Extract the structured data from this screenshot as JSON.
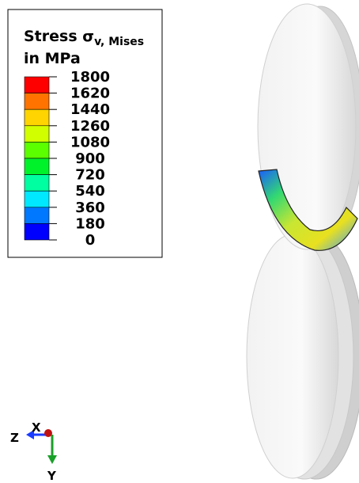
{
  "legend": {
    "title": "Stress σ",
    "title_subscript": "v, Mises",
    "unit": "in MPa",
    "labels": [
      1800,
      1620,
      1440,
      1260,
      1080,
      900,
      720,
      540,
      360,
      180,
      0
    ],
    "colors": [
      "#ff0000",
      "#ff7400",
      "#ffd400",
      "#d2ff00",
      "#5cff00",
      "#00f22a",
      "#00ffa0",
      "#00e8ff",
      "#0078ff",
      "#0000ff"
    ]
  },
  "triad": {
    "z": "Z",
    "x": "X",
    "y": "Y"
  }
}
